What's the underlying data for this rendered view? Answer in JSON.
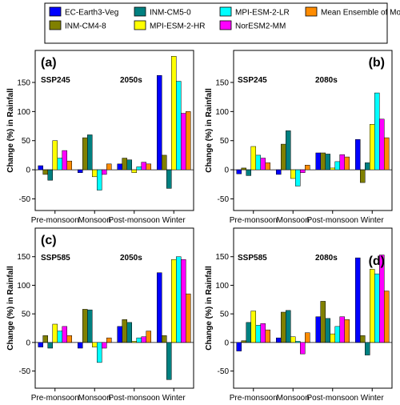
{
  "colors": {
    "EC-Earth3-Veg": "#0000ff",
    "INM-CM4-8": "#808000",
    "INM-CM5-0": "#008080",
    "MPI-ESM-2-HR": "#ffff00",
    "MPI-ESM-2-LR": "#00ffff",
    "NorESM2-MM": "#ff00ff",
    "Mean Ensemble of Models": "#ff8c00"
  },
  "legend": {
    "items": [
      "EC-Earth3-Veg",
      "INM-CM4-8",
      "INM-CM5-0",
      "MPI-ESM-2-HR",
      "MPI-ESM-2-LR",
      "NorESM2-MM",
      "Mean Ensemble of Models"
    ]
  },
  "chart_data": [
    {
      "type": "bar",
      "panel_label": "(a)",
      "scenario": "SSP245",
      "period": "2050s",
      "ylabel": "Change (%) in Rainfall",
      "categories": [
        "Pre-monsoon",
        "Monsoon",
        "Post-monsoon",
        "Winter"
      ],
      "ylim": [
        -70,
        205
      ],
      "yticks": [
        -50,
        0,
        50,
        100,
        150
      ],
      "series": [
        {
          "name": "EC-Earth3-Veg",
          "values": [
            7,
            -5,
            10,
            162
          ]
        },
        {
          "name": "INM-CM4-8",
          "values": [
            -8,
            55,
            20,
            25
          ]
        },
        {
          "name": "INM-CM5-0",
          "values": [
            -18,
            60,
            17,
            -32
          ]
        },
        {
          "name": "MPI-ESM-2-HR",
          "values": [
            50,
            -12,
            -5,
            195
          ]
        },
        {
          "name": "MPI-ESM-2-LR",
          "values": [
            20,
            -35,
            5,
            152
          ]
        },
        {
          "name": "NorESM2-MM",
          "values": [
            33,
            -8,
            13,
            97
          ]
        },
        {
          "name": "Mean Ensemble of Models",
          "values": [
            15,
            10,
            10,
            100
          ]
        }
      ]
    },
    {
      "type": "bar",
      "panel_label": "(b)",
      "scenario": "SSP245",
      "period": "2080s",
      "ylabel": "Change (%) in Rainfall",
      "categories": [
        "Pre-monsoon",
        "Monsoon",
        "Post-monsoon",
        "Winter"
      ],
      "ylim": [
        -70,
        205
      ],
      "yticks": [
        -50,
        0,
        50,
        100,
        150
      ],
      "series": [
        {
          "name": "EC-Earth3-Veg",
          "values": [
            -7,
            -8,
            29,
            52
          ]
        },
        {
          "name": "INM-CM4-8",
          "values": [
            3,
            44,
            29,
            -22
          ]
        },
        {
          "name": "INM-CM5-0",
          "values": [
            -10,
            67,
            27,
            12
          ]
        },
        {
          "name": "MPI-ESM-2-HR",
          "values": [
            40,
            -15,
            3,
            78
          ]
        },
        {
          "name": "MPI-ESM-2-LR",
          "values": [
            25,
            -28,
            14,
            132
          ]
        },
        {
          "name": "NorESM2-MM",
          "values": [
            20,
            -5,
            26,
            87
          ]
        },
        {
          "name": "Mean Ensemble of Models",
          "values": [
            12,
            8,
            22,
            55
          ]
        }
      ]
    },
    {
      "type": "bar",
      "panel_label": "(c)",
      "scenario": "SSP585",
      "period": "2050s",
      "ylabel": "Change (%) in Rainfall",
      "categories": [
        "Pre-monsoon",
        "Monsoon",
        "Post-monsoon",
        "Winter"
      ],
      "ylim": [
        -80,
        200
      ],
      "yticks": [
        -50,
        0,
        50,
        100,
        150
      ],
      "series": [
        {
          "name": "EC-Earth3-Veg",
          "values": [
            -8,
            -10,
            28,
            122
          ]
        },
        {
          "name": "INM-CM4-8",
          "values": [
            12,
            58,
            40,
            12
          ]
        },
        {
          "name": "INM-CM5-0",
          "values": [
            -10,
            57,
            35,
            -65
          ]
        },
        {
          "name": "MPI-ESM-2-HR",
          "values": [
            32,
            -8,
            2,
            145
          ]
        },
        {
          "name": "MPI-ESM-2-LR",
          "values": [
            20,
            -35,
            8,
            150
          ]
        },
        {
          "name": "NorESM2-MM",
          "values": [
            28,
            -10,
            10,
            145
          ]
        },
        {
          "name": "Mean Ensemble of Models",
          "values": [
            12,
            8,
            20,
            85
          ]
        }
      ]
    },
    {
      "type": "bar",
      "panel_label": "(d)",
      "scenario": "SSP585",
      "period": "2080s",
      "ylabel": "Change (%) in Rainfall",
      "categories": [
        "Pre-monsoon",
        "Monsoon",
        "Post-monsoon",
        "Winter"
      ],
      "ylim": [
        -80,
        200
      ],
      "yticks": [
        -50,
        0,
        50,
        100,
        150
      ],
      "series": [
        {
          "name": "EC-Earth3-Veg",
          "values": [
            -15,
            8,
            45,
            148
          ]
        },
        {
          "name": "INM-CM4-8",
          "values": [
            3,
            53,
            72,
            12
          ]
        },
        {
          "name": "INM-CM5-0",
          "values": [
            35,
            56,
            42,
            -22
          ]
        },
        {
          "name": "MPI-ESM-2-HR",
          "values": [
            55,
            10,
            15,
            128
          ]
        },
        {
          "name": "MPI-ESM-2-LR",
          "values": [
            30,
            2,
            28,
            120
          ]
        },
        {
          "name": "NorESM2-MM",
          "values": [
            33,
            -20,
            45,
            153
          ]
        },
        {
          "name": "Mean Ensemble of Models",
          "values": [
            22,
            17,
            40,
            90
          ]
        }
      ]
    }
  ]
}
